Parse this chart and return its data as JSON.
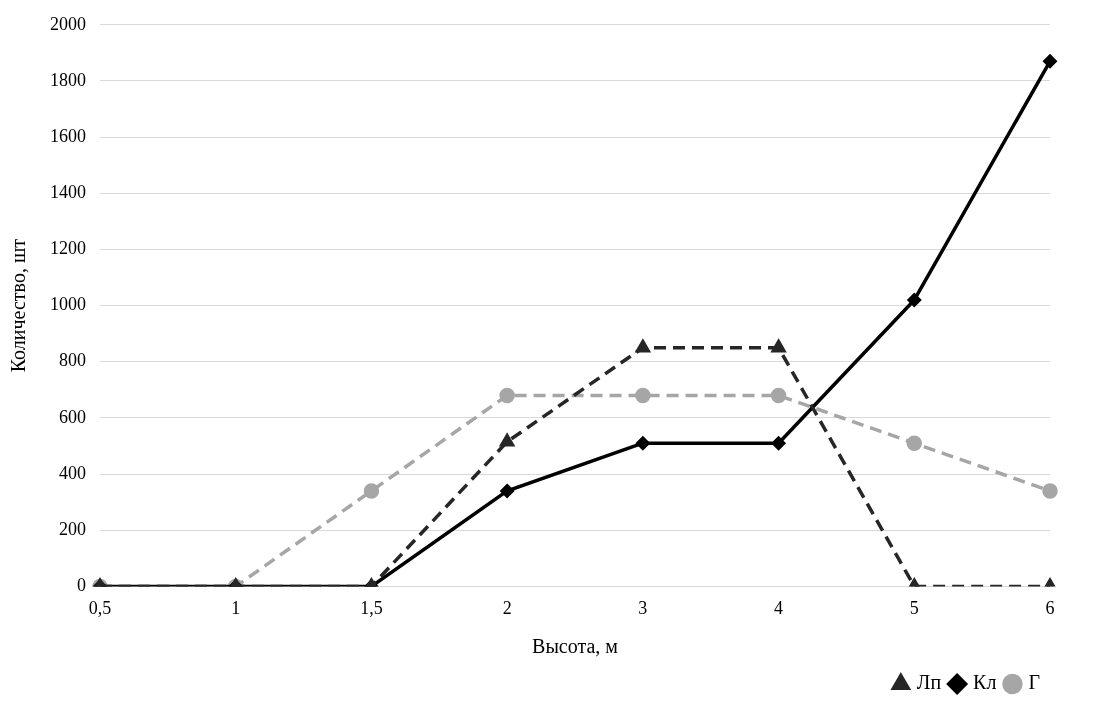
{
  "chart_data": {
    "type": "line",
    "xlabel": "Высота, м",
    "ylabel": "Количество, шт",
    "categories": [
      "0,5",
      "1",
      "1,5",
      "2",
      "3",
      "4",
      "5",
      "6"
    ],
    "series": [
      {
        "name": "Лп",
        "color": "#262626",
        "marker": "triangle",
        "line_style": "dashed",
        "values": [
          0,
          0,
          0,
          515,
          850,
          850,
          0,
          0
        ]
      },
      {
        "name": "Кл",
        "color": "#000000",
        "marker": "diamond",
        "line_style": "solid",
        "values": [
          0,
          0,
          0,
          340,
          510,
          510,
          1020,
          1870
        ]
      },
      {
        "name": "Г",
        "color": "#a6a6a6",
        "marker": "circle",
        "line_style": "dashed",
        "values": [
          0,
          0,
          340,
          680,
          680,
          680,
          510,
          340
        ]
      }
    ],
    "ylim": [
      0,
      2000
    ],
    "yticks": [
      0,
      200,
      400,
      600,
      800,
      1000,
      1200,
      1400,
      1600,
      1800,
      2000
    ],
    "grid": "y",
    "legend": "bottom right"
  }
}
